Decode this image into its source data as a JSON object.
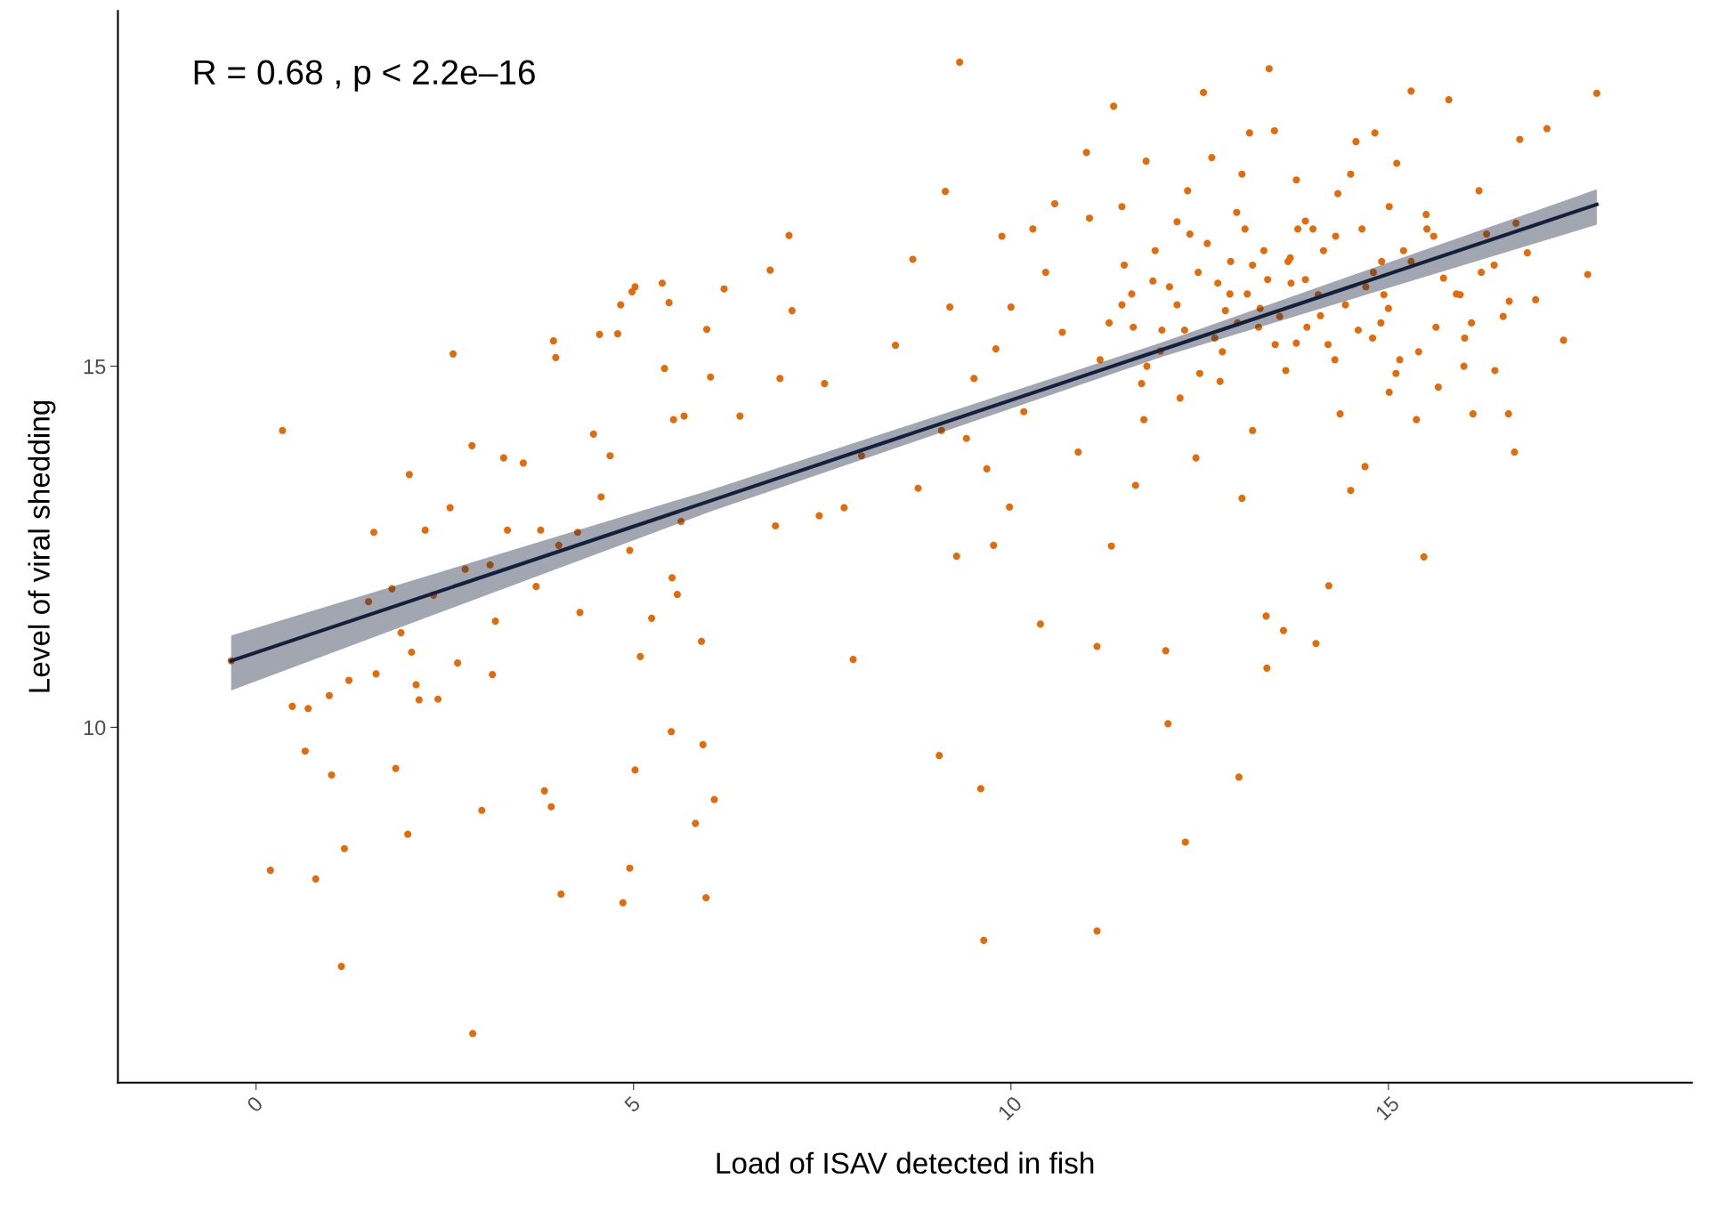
{
  "chart_data": {
    "type": "scatter",
    "xlabel": "Load of ISAV detected in fish",
    "ylabel": "Level of viral shedding",
    "annotations": [
      "R = 0.68 , p < 2.2e–16"
    ],
    "xlim": [
      -1.83,
      19.02
    ],
    "ylim": [
      5.08,
      19.92
    ],
    "xticks": [
      0,
      5,
      10,
      15
    ],
    "yticks": [
      10,
      15
    ],
    "grid": false,
    "series": [
      {
        "color": "#e36c0a",
        "marker": "circle",
        "x": [
          11.3,
          11.5,
          11.8,
          12.1,
          12.3,
          12.6,
          12.8,
          12.9,
          13.1,
          13.3,
          13.5,
          13.7,
          13.9,
          14.1,
          14.3,
          14.6,
          14.8,
          15.0,
          15.2,
          15.4,
          15.6,
          15.9,
          16.1,
          16.4,
          16.6,
          12.2,
          12.5,
          13.0,
          13.4,
          13.8,
          14.2,
          14.7,
          15.1,
          15.5,
          11.6,
          12.0,
          13.2,
          14.0,
          14.9,
          16.0,
          -0.33,
          0.19,
          0.35,
          0.48,
          0.65,
          0.69,
          0.79,
          0.97,
          1.0,
          1.13,
          1.17,
          1.23,
          1.49,
          1.56,
          1.59,
          1.8,
          1.85,
          1.92,
          2.01,
          2.03,
          2.06,
          2.12,
          2.16,
          2.24,
          2.35,
          2.41,
          2.57,
          2.61,
          2.67,
          2.77,
          2.86,
          2.87,
          2.99,
          3.1,
          3.13,
          3.17,
          3.28,
          3.33,
          3.54,
          3.71,
          3.77,
          3.82,
          3.91,
          3.94,
          3.97,
          4.01,
          4.04,
          4.26,
          4.29,
          4.47,
          4.55,
          4.57,
          4.69,
          4.79,
          4.83,
          4.86,
          4.95,
          4.95,
          4.98,
          5.02,
          5.02,
          5.09,
          5.24,
          5.38,
          5.41,
          5.47,
          5.5,
          5.51,
          5.53,
          5.58,
          5.63,
          5.67,
          5.82,
          5.9,
          5.92,
          5.96,
          5.97,
          6.02,
          6.07,
          6.2,
          6.41,
          6.81,
          6.88,
          6.94,
          7.06,
          7.1,
          7.46,
          7.53,
          7.79,
          7.91,
          8.02,
          8.47,
          8.7,
          8.77,
          9.05,
          9.08,
          9.13,
          9.19,
          9.28,
          9.32,
          9.41,
          9.51,
          9.6,
          9.64,
          9.68,
          9.77,
          9.8,
          9.88,
          9.98,
          10.0,
          10.17,
          10.29,
          10.39,
          10.58,
          10.68,
          10.89,
          11.0,
          11.14,
          11.14,
          11.33,
          11.36,
          11.47,
          11.65,
          11.73,
          11.79,
          11.88,
          11.98,
          12.05,
          12.08,
          12.24,
          12.31,
          12.37,
          12.45,
          12.55,
          12.66,
          12.74,
          12.84,
          12.99,
          13.02,
          13.06,
          13.16,
          13.2,
          13.28,
          13.38,
          13.39,
          13.42,
          13.49,
          13.61,
          13.67,
          13.78,
          13.9,
          14.04,
          14.07,
          14.21,
          14.33,
          14.5,
          14.57,
          14.69,
          14.82,
          14.91,
          15.01,
          15.11,
          15.3,
          15.37,
          15.47,
          15.63,
          15.8,
          15.95,
          16.12,
          16.2,
          16.41,
          16.59,
          16.67,
          16.74,
          16.84,
          17.1,
          17.32,
          17.64,
          17.76,
          11.18,
          11.62,
          11.91,
          12.2,
          12.48,
          12.7,
          12.91,
          13.13,
          13.35,
          13.56,
          13.71,
          13.92,
          14.14,
          14.29,
          14.43,
          14.65,
          14.79,
          14.94,
          15.15,
          15.3,
          15.51,
          15.73,
          16.01,
          16.3,
          16.52,
          16.69,
          16.95,
          11.76,
          12.77,
          13.64,
          14.36,
          15.01,
          15.66,
          16.23,
          10.46,
          11.04,
          11.47,
          12.34,
          13.06,
          13.78,
          14.5
        ],
        "values": [
          15.6,
          16.4,
          15.0,
          16.1,
          15.5,
          16.7,
          15.2,
          16.0,
          16.9,
          15.8,
          15.3,
          16.5,
          16.2,
          15.7,
          16.8,
          15.5,
          16.3,
          15.8,
          16.6,
          15.2,
          16.8,
          16.0,
          15.6,
          16.4,
          15.9,
          17.0,
          14.9,
          15.6,
          16.2,
          16.9,
          15.3,
          16.1,
          14.9,
          17.1,
          16.0,
          15.5,
          16.4,
          16.9,
          15.6,
          15.0,
          10.92,
          8.02,
          14.11,
          10.29,
          9.67,
          10.26,
          7.9,
          10.44,
          9.34,
          6.69,
          8.32,
          10.65,
          11.74,
          12.7,
          10.74,
          11.92,
          9.43,
          11.31,
          8.52,
          13.5,
          11.04,
          10.59,
          10.38,
          12.73,
          11.83,
          10.39,
          13.04,
          15.17,
          10.89,
          12.19,
          13.9,
          5.76,
          8.85,
          12.25,
          10.73,
          11.47,
          13.73,
          12.73,
          13.66,
          11.95,
          12.73,
          9.12,
          8.9,
          15.35,
          15.12,
          12.52,
          7.69,
          12.7,
          11.59,
          14.06,
          15.44,
          13.19,
          13.76,
          15.45,
          15.85,
          7.57,
          12.45,
          8.05,
          16.03,
          16.1,
          9.41,
          10.98,
          11.51,
          16.15,
          14.97,
          15.88,
          9.94,
          12.07,
          14.26,
          11.84,
          12.85,
          14.31,
          8.67,
          11.19,
          9.76,
          7.64,
          15.51,
          14.85,
          9.0,
          16.07,
          14.31,
          16.33,
          12.79,
          14.83,
          16.81,
          15.77,
          12.93,
          14.76,
          13.04,
          10.94,
          13.76,
          15.29,
          16.48,
          13.31,
          9.61,
          14.11,
          17.42,
          15.82,
          12.37,
          19.21,
          14.0,
          14.83,
          9.15,
          7.05,
          13.58,
          12.52,
          15.24,
          16.8,
          13.05,
          15.82,
          14.37,
          16.9,
          11.43,
          17.25,
          15.47,
          13.81,
          17.96,
          11.12,
          7.18,
          12.51,
          18.6,
          15.85,
          13.35,
          14.76,
          17.84,
          16.18,
          15.21,
          11.06,
          10.05,
          14.56,
          8.41,
          16.83,
          13.73,
          18.79,
          17.89,
          16.15,
          15.77,
          17.13,
          9.31,
          13.17,
          18.23,
          14.11,
          15.54,
          11.54,
          10.82,
          19.12,
          18.26,
          11.34,
          16.45,
          15.32,
          17.01,
          11.16,
          15.99,
          11.96,
          17.39,
          13.28,
          18.11,
          13.61,
          18.23,
          16.45,
          17.21,
          17.81,
          18.81,
          14.26,
          12.36,
          15.54,
          18.69,
          15.99,
          14.34,
          17.43,
          14.94,
          14.34,
          13.81,
          18.14,
          16.57,
          18.29,
          15.36,
          16.27,
          18.78,
          15.09,
          15.54,
          16.6,
          15.85,
          16.3,
          15.39,
          16.45,
          16.0,
          16.6,
          15.69,
          16.15,
          15.54,
          16.6,
          15.09,
          15.85,
          16.9,
          15.39,
          15.99,
          15.09,
          16.45,
          16.9,
          16.22,
          15.39,
          16.83,
          15.69,
          16.98,
          15.92,
          14.26,
          14.79,
          14.94,
          14.34,
          14.64,
          14.71,
          16.3,
          16.3,
          17.05,
          17.21,
          17.43,
          17.66,
          17.58,
          17.66
        ]
      },
      {
        "type": "line",
        "color": "#14213d",
        "x": [
          -0.33,
          6,
          12,
          17.76
        ],
        "values": [
          10.92,
          13.13,
          15.23,
          17.24
        ],
        "lower": [
          10.51,
          12.98,
          15.13,
          16.96
        ],
        "upper": [
          11.27,
          13.28,
          15.33,
          17.45
        ]
      }
    ]
  }
}
